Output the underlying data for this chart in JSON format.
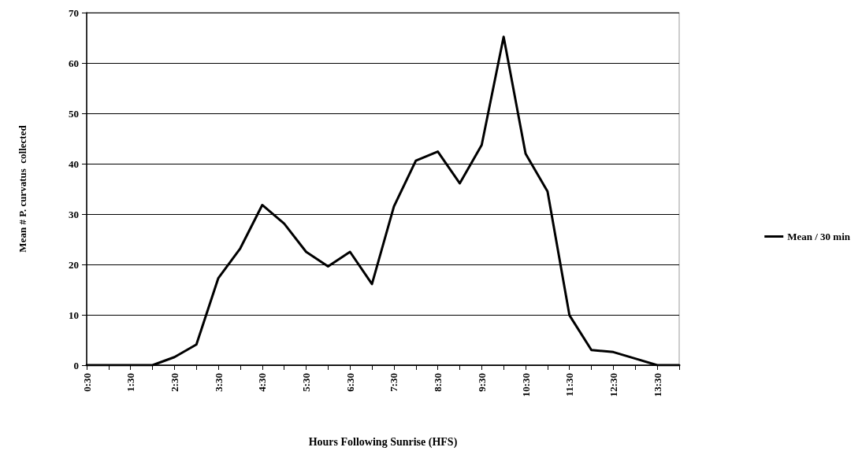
{
  "chart_data": {
    "type": "line",
    "xlabel": "Hours Following Sunrise (HFS)",
    "ylabel": "Mean # P. curvatus  collected",
    "categories": [
      "0:30",
      null,
      "1:30",
      null,
      "2:30",
      null,
      "3:30",
      null,
      "4:30",
      null,
      "5:30",
      null,
      "6:30",
      null,
      "7:30",
      null,
      "8:30",
      null,
      "9:30",
      null,
      "10:30",
      null,
      "11:30",
      null,
      "12:30",
      null,
      "13:30",
      null
    ],
    "series": [
      {
        "name": "Mean / 30 min",
        "color": "#000000",
        "values": [
          0,
          0,
          0,
          0,
          1.6,
          4.1,
          17.3,
          23.2,
          31.8,
          28.1,
          22.5,
          19.6,
          22.5,
          16.1,
          31.5,
          40.6,
          42.4,
          36.1,
          43.7,
          65.2,
          42.0,
          34.5,
          9.9,
          3.0,
          2.6,
          1.3,
          0,
          0
        ]
      }
    ],
    "ylim": [
      0,
      70
    ],
    "yticks": [
      0,
      10,
      20,
      30,
      40,
      50,
      60,
      70
    ],
    "grid": "y",
    "legend": "right",
    "marker": "none",
    "line_style": "solid"
  }
}
